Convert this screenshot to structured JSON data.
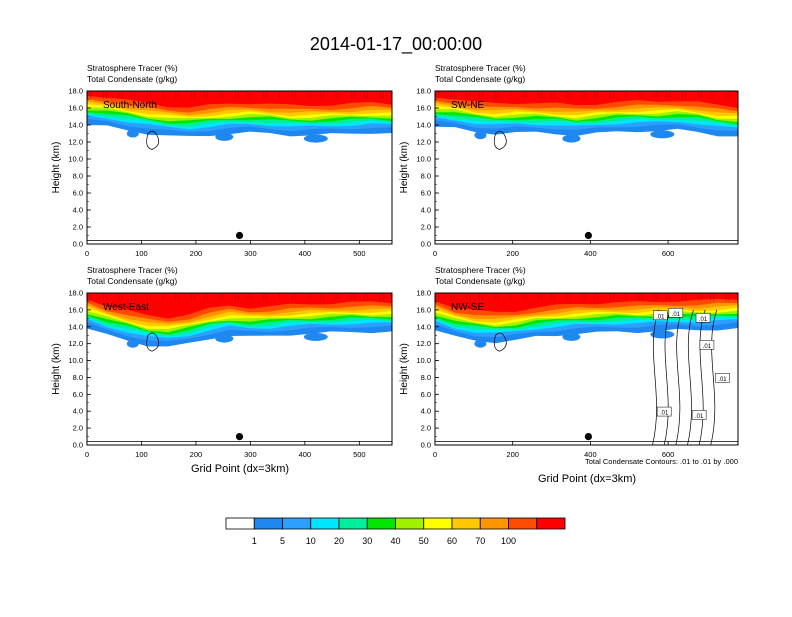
{
  "figure_title": "2014-01-17_00:00:00",
  "panel_titles": [
    "Stratosphere Tracer   (%)",
    "Total Condensate   (g/kg)"
  ],
  "ylabel": "Height (km)",
  "xlabel": "Grid Point (dx=3km)",
  "contour_note": "Total Condensate Contours: .01 to .01 by .000",
  "colorbar": {
    "labels": [
      "1",
      "5",
      "10",
      "20",
      "30",
      "40",
      "50",
      "60",
      "70",
      "100"
    ],
    "colors": [
      "#ffffff",
      "#1e87f0",
      "#2ba0ff",
      "#00e6ff",
      "#00f09a",
      "#00e600",
      "#a0f000",
      "#ffff00",
      "#ffc800",
      "#ff9600",
      "#ff4b00",
      "#ff0000"
    ]
  },
  "chart_data": [
    {
      "type": "heatmap",
      "label": "South-North",
      "xlim": [
        0,
        560
      ],
      "ylim": [
        0,
        18
      ],
      "xticks": [
        0,
        100,
        200,
        300,
        400,
        500
      ],
      "yticks": [
        "0.0",
        "2.0",
        "4.0",
        "6.0",
        "8.0",
        "10.0",
        "12.0",
        "14.0",
        "16.0",
        "18.0"
      ],
      "marker": {
        "x": 280,
        "y": 1.0
      },
      "tropopause_km": [
        16.2,
        16.0,
        15.6,
        15.2,
        14.9,
        14.8,
        15.0,
        15.2,
        15.3,
        15.2,
        15.0,
        15.0,
        15.1,
        15.2,
        15.3,
        15.2
      ]
    },
    {
      "type": "heatmap",
      "label": "SW-NE",
      "xlim": [
        0,
        780
      ],
      "ylim": [
        0,
        18
      ],
      "xticks": [
        0,
        200,
        400,
        600
      ],
      "yticks": [
        "0.0",
        "2.0",
        "4.0",
        "6.0",
        "8.0",
        "10.0",
        "12.0",
        "14.0",
        "16.0",
        "18.0"
      ],
      "marker": {
        "x": 395,
        "y": 1.0
      },
      "tropopause_km": [
        16.0,
        15.8,
        15.4,
        15.2,
        15.3,
        15.3,
        15.2,
        15.0,
        15.2,
        15.4,
        15.5,
        15.5,
        15.6,
        15.4,
        15.0,
        14.8
      ]
    },
    {
      "type": "heatmap",
      "label": "West-East",
      "xlim": [
        0,
        560
      ],
      "ylim": [
        0,
        18
      ],
      "xticks": [
        0,
        100,
        200,
        300,
        400,
        500
      ],
      "yticks": [
        "0.0",
        "2.0",
        "4.0",
        "6.0",
        "8.0",
        "10.0",
        "12.0",
        "14.0",
        "16.0",
        "18.0"
      ],
      "marker": {
        "x": 280,
        "y": 1.0
      },
      "tropopause_km": [
        16.0,
        15.2,
        14.6,
        14.0,
        13.8,
        14.2,
        14.8,
        15.2,
        15.0,
        15.1,
        15.3,
        15.4,
        15.5,
        15.6,
        15.6,
        15.6
      ]
    },
    {
      "type": "heatmap",
      "label": "NW-SE",
      "xlim": [
        0,
        780
      ],
      "ylim": [
        0,
        18
      ],
      "xticks": [
        0,
        200,
        400,
        600
      ],
      "yticks": [
        "0.0",
        "2.0",
        "4.0",
        "6.0",
        "8.0",
        "10.0",
        "12.0",
        "14.0",
        "16.0",
        "18.0"
      ],
      "marker": {
        "x": 395,
        "y": 1.0
      },
      "tropopause_km": [
        15.8,
        15.0,
        14.6,
        14.4,
        14.6,
        15.0,
        15.2,
        15.4,
        15.5,
        15.6,
        15.6,
        15.7,
        15.8,
        15.8,
        15.9,
        16.0
      ],
      "contour_labels": [
        ".01",
        ".01",
        ".01",
        ".01",
        ".01",
        ".01",
        ".01"
      ]
    }
  ]
}
